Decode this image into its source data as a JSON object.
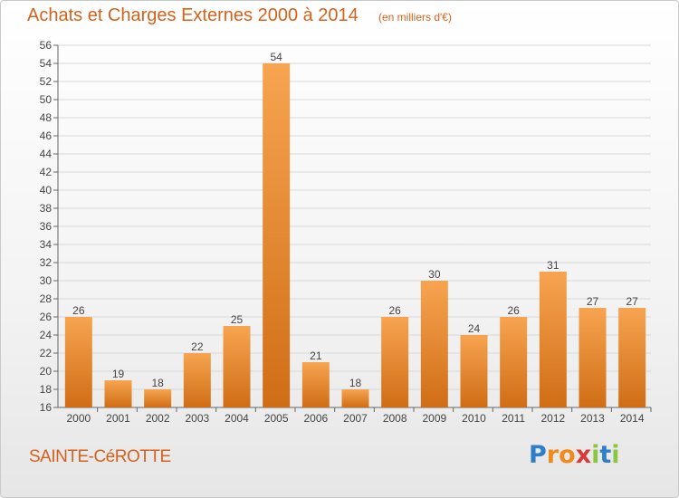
{
  "header": {
    "title": "Achats et Charges Externes 2000 à 2014",
    "subtitle": "(en milliers d'€)"
  },
  "footer": {
    "town": "SAINTE-CéROTTE",
    "brand_letters": [
      "P",
      "r",
      "o",
      "x",
      "i",
      "t",
      "i"
    ],
    "brand_colors": [
      "#2f7fc8",
      "#f08a1c",
      "#f08a1c",
      "#d83a3a",
      "#8cc63f",
      "#2f7fc8",
      "#8cc63f"
    ]
  },
  "colors": {
    "bar_light": "#f7a450",
    "bar_dark": "#d06d16",
    "title": "#d4621c",
    "grid": "#d8d8d8",
    "axis_text": "#444444"
  },
  "chart_data": {
    "type": "bar",
    "categories": [
      "2000",
      "2001",
      "2002",
      "2003",
      "2004",
      "2005",
      "2006",
      "2007",
      "2008",
      "2009",
      "2010",
      "2011",
      "2012",
      "2013",
      "2014"
    ],
    "values": [
      26,
      19,
      18,
      22,
      25,
      54,
      21,
      18,
      26,
      30,
      24,
      26,
      31,
      27,
      27
    ],
    "ylim": [
      16,
      56
    ],
    "yticks": [
      16,
      18,
      20,
      22,
      24,
      26,
      28,
      30,
      32,
      34,
      36,
      38,
      40,
      42,
      44,
      46,
      48,
      50,
      52,
      54,
      56
    ],
    "grid": true,
    "data_labels": true,
    "title": "Achats et Charges Externes 2000 à 2014",
    "xlabel": "",
    "ylabel": ""
  }
}
